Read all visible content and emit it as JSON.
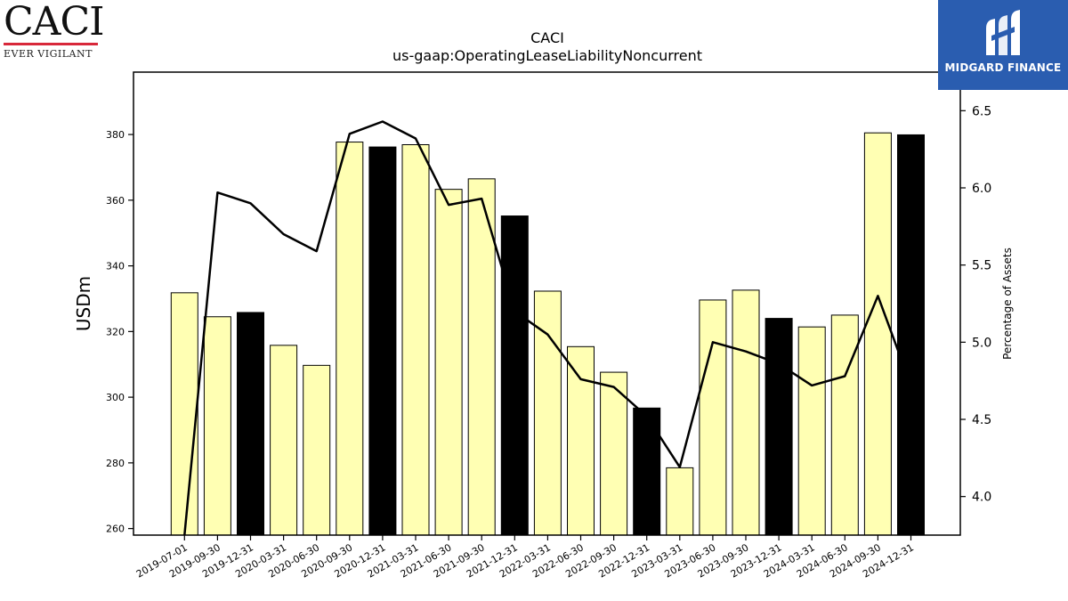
{
  "logos": {
    "left_brand": "CACI",
    "left_tagline": "EVER VIGILANT",
    "right_brand": "MIDGARD FINANCE"
  },
  "colors": {
    "bar_default": "#ffffb3",
    "bar_highlight": "#000000",
    "line": "#000000",
    "left_logo_rule": "#d8283a",
    "right_logo_bg": "#2a5db0"
  },
  "chart_data": {
    "type": "bar",
    "title": "CACI",
    "subtitle": "us-gaap:OperatingLeaseLiabilityNoncurrent",
    "ylabel": "USDm",
    "y2label": "Percentage of Assets",
    "ylim": [
      258,
      399
    ],
    "y2lim": [
      3.75,
      6.75
    ],
    "yticks": [
      260,
      280,
      300,
      320,
      340,
      360,
      380
    ],
    "y2ticks": [
      4.0,
      4.5,
      5.0,
      5.5,
      6.0,
      6.5
    ],
    "categories": [
      "2019-07-01",
      "2019-09-30",
      "2019-12-31",
      "2020-03-31",
      "2020-06-30",
      "2020-09-30",
      "2020-12-31",
      "2021-03-31",
      "2021-06-30",
      "2021-09-30",
      "2021-12-31",
      "2022-03-31",
      "2022-06-30",
      "2022-09-30",
      "2022-12-31",
      "2023-03-31",
      "2023-06-30",
      "2023-09-30",
      "2023-12-31",
      "2024-03-31",
      "2024-06-30",
      "2024-09-30",
      "2024-12-31"
    ],
    "series": [
      {
        "type": "bar",
        "axis": "left",
        "values": [
          331.8,
          324.5,
          325.8,
          315.8,
          309.7,
          377.7,
          376.2,
          376.9,
          363.3,
          366.5,
          355.2,
          332.3,
          315.4,
          307.6,
          296.7,
          278.5,
          329.6,
          332.6,
          324.0,
          321.4,
          325.0,
          380.5,
          379.9
        ],
        "highlight": [
          false,
          false,
          true,
          false,
          false,
          false,
          true,
          false,
          false,
          false,
          true,
          false,
          false,
          false,
          true,
          false,
          false,
          false,
          true,
          false,
          false,
          false,
          true
        ]
      },
      {
        "type": "line",
        "axis": "right",
        "values": [
          3.75,
          5.97,
          5.9,
          5.7,
          5.59,
          6.35,
          6.43,
          6.32,
          5.89,
          5.93,
          5.2,
          5.05,
          4.76,
          4.71,
          4.52,
          4.19,
          5.0,
          4.94,
          4.86,
          4.72,
          4.78,
          5.3,
          4.72
        ]
      }
    ]
  }
}
